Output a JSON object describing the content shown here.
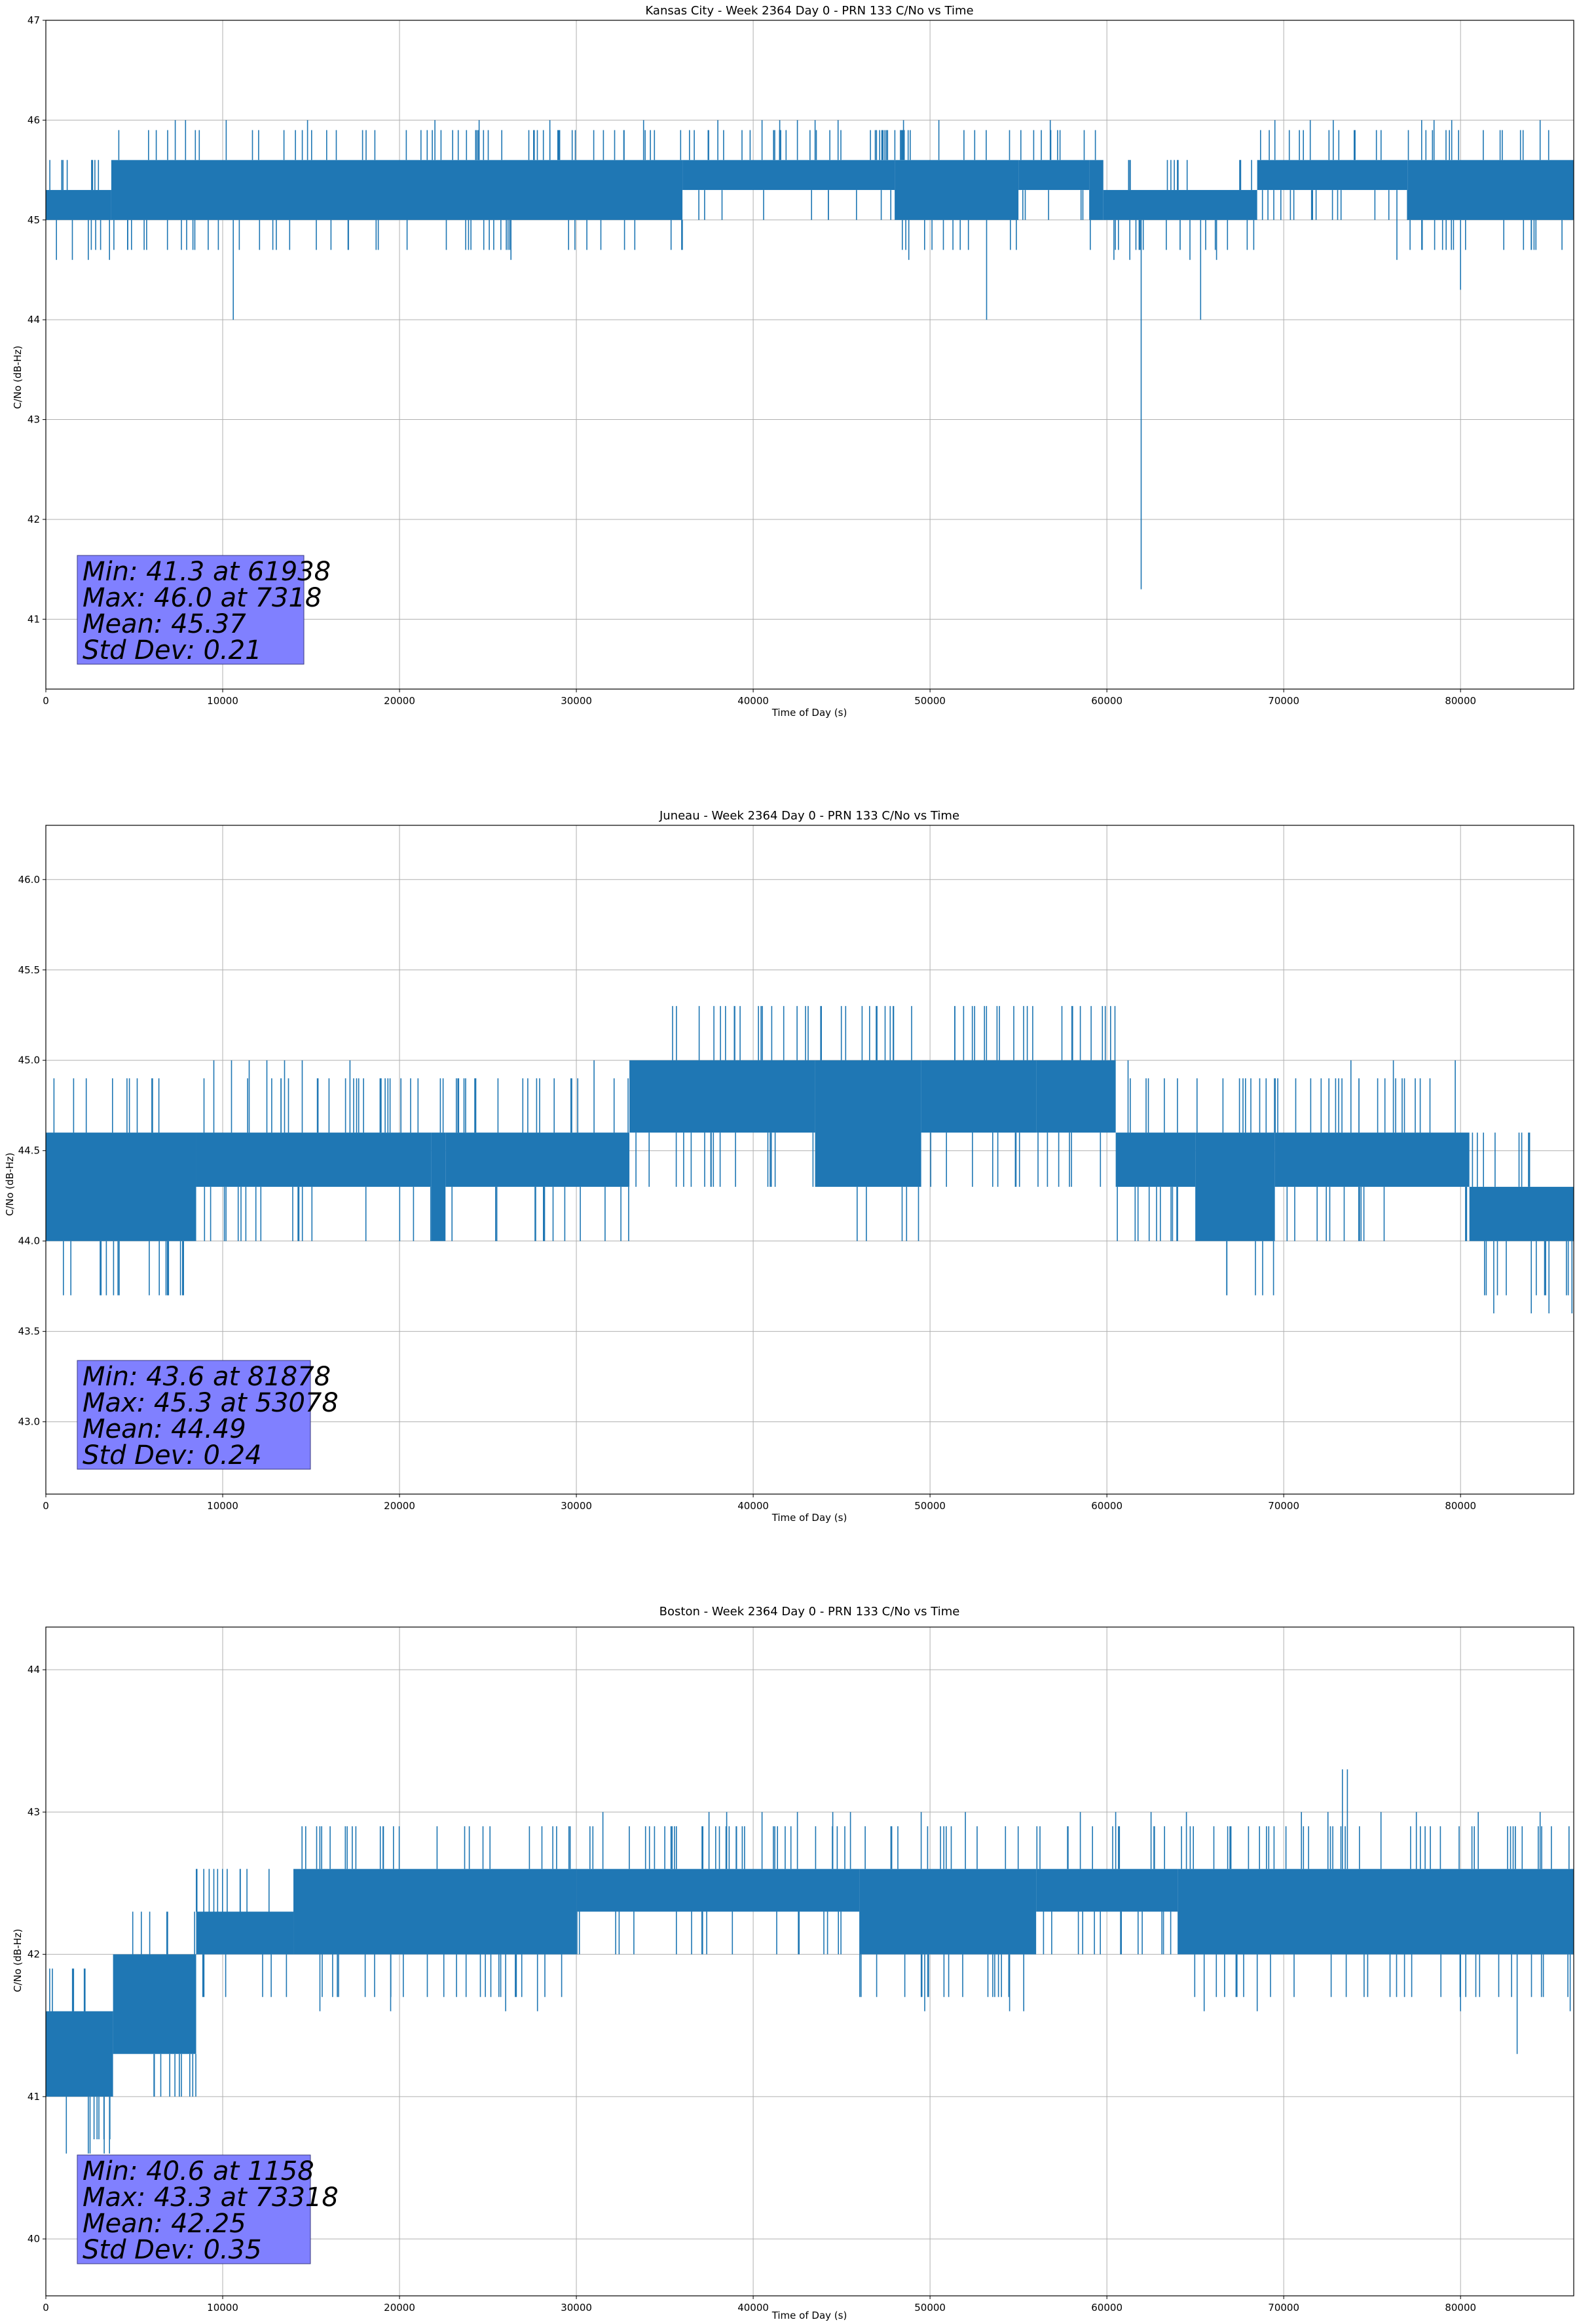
{
  "chart_data": [
    {
      "type": "line",
      "title": "Kansas City - Week 2364 Day 0 - PRN 133 C/No vs Time",
      "xlabel": "Time of Day (s)",
      "ylabel": "C/No (dB-Hz)",
      "xlim": [
        0,
        86400
      ],
      "ylim": [
        40.3,
        47.0
      ],
      "xticks": [
        0,
        10000,
        20000,
        30000,
        40000,
        50000,
        60000,
        70000,
        80000
      ],
      "yticks": [
        41,
        42,
        43,
        44,
        45,
        46,
        47
      ],
      "ytick_labels": [
        "41",
        "42",
        "43",
        "44",
        "45",
        "46",
        "47"
      ],
      "grid": true,
      "color": "#1f77b4",
      "series": [
        {
          "name": "C/No",
          "segments": [
            {
              "x": [
                0,
                3700
              ],
              "low": 45.0,
              "high": 45.3
            },
            {
              "x": [
                3700,
                36000
              ],
              "low": 45.0,
              "high": 45.6
            },
            {
              "x": [
                36000,
                48000
              ],
              "low": 45.3,
              "high": 45.6
            },
            {
              "x": [
                48000,
                55000
              ],
              "low": 45.0,
              "high": 45.6
            },
            {
              "x": [
                55000,
                59000
              ],
              "low": 45.3,
              "high": 45.6
            },
            {
              "x": [
                59000,
                59800
              ],
              "low": 45.0,
              "high": 45.6
            },
            {
              "x": [
                59800,
                68500
              ],
              "low": 45.0,
              "high": 45.3
            },
            {
              "x": [
                68500,
                77000
              ],
              "low": 45.3,
              "high": 45.6
            },
            {
              "x": [
                77000,
                86400
              ],
              "low": 45.0,
              "high": 45.6
            }
          ],
          "spikes": [
            {
              "x": 600,
              "y": 44.6
            },
            {
              "x": 1500,
              "y": 44.6
            },
            {
              "x": 2400,
              "y": 44.6
            },
            {
              "x": 3600,
              "y": 44.6
            },
            {
              "x": 7318,
              "y": 46.0
            },
            {
              "x": 7900,
              "y": 46.0
            },
            {
              "x": 10200,
              "y": 46.0
            },
            {
              "x": 10600,
              "y": 44.0
            },
            {
              "x": 14800,
              "y": 46.0
            },
            {
              "x": 22000,
              "y": 46.0
            },
            {
              "x": 24500,
              "y": 46.0
            },
            {
              "x": 26300,
              "y": 44.6
            },
            {
              "x": 28500,
              "y": 46.0
            },
            {
              "x": 33800,
              "y": 46.0
            },
            {
              "x": 38000,
              "y": 46.0
            },
            {
              "x": 40500,
              "y": 46.0
            },
            {
              "x": 41500,
              "y": 46.0
            },
            {
              "x": 42500,
              "y": 46.0
            },
            {
              "x": 43500,
              "y": 46.0
            },
            {
              "x": 44800,
              "y": 46.0
            },
            {
              "x": 48500,
              "y": 46.0
            },
            {
              "x": 48800,
              "y": 44.6
            },
            {
              "x": 50500,
              "y": 46.0
            },
            {
              "x": 53200,
              "y": 44.0
            },
            {
              "x": 56800,
              "y": 46.0
            },
            {
              "x": 60400,
              "y": 44.6
            },
            {
              "x": 61300,
              "y": 44.6
            },
            {
              "x": 61938,
              "y": 41.3
            },
            {
              "x": 64700,
              "y": 44.6
            },
            {
              "x": 65300,
              "y": 44.0
            },
            {
              "x": 66200,
              "y": 44.6
            },
            {
              "x": 69500,
              "y": 46.0
            },
            {
              "x": 71500,
              "y": 46.0
            },
            {
              "x": 72800,
              "y": 46.0
            },
            {
              "x": 76400,
              "y": 44.6
            },
            {
              "x": 77800,
              "y": 46.0
            },
            {
              "x": 78500,
              "y": 46.0
            },
            {
              "x": 79500,
              "y": 46.0
            },
            {
              "x": 80000,
              "y": 44.3
            },
            {
              "x": 84500,
              "y": 46.0
            }
          ]
        }
      ],
      "stats": [
        "Min: 41.3 at 61938",
        "Max: 46.0 at 7318",
        "Mean: 45.37",
        "Std Dev: 0.21"
      ]
    },
    {
      "type": "line",
      "title": "Juneau - Week 2364 Day 0 - PRN 133 C/No vs Time",
      "xlabel": "Time of Day (s)",
      "ylabel": "C/No (dB-Hz)",
      "xlim": [
        0,
        86400
      ],
      "ylim": [
        42.6,
        46.3
      ],
      "xticks": [
        0,
        10000,
        20000,
        30000,
        40000,
        50000,
        60000,
        70000,
        80000
      ],
      "yticks": [
        43.0,
        43.5,
        44.0,
        44.5,
        45.0,
        45.5,
        46.0
      ],
      "ytick_labels": [
        "43.0",
        "43.5",
        "44.0",
        "44.5",
        "45.0",
        "45.5",
        "46.0"
      ],
      "grid": true,
      "color": "#1f77b4",
      "series": [
        {
          "name": "C/No",
          "segments": [
            {
              "x": [
                0,
                8500
              ],
              "low": 44.0,
              "high": 44.6
            },
            {
              "x": [
                8500,
                21800
              ],
              "low": 44.3,
              "high": 44.6
            },
            {
              "x": [
                21800,
                22600
              ],
              "low": 44.0,
              "high": 44.6
            },
            {
              "x": [
                22600,
                33000
              ],
              "low": 44.3,
              "high": 44.6
            },
            {
              "x": [
                33000,
                43500
              ],
              "low": 44.6,
              "high": 45.0
            },
            {
              "x": [
                43500,
                49500
              ],
              "low": 44.3,
              "high": 45.0
            },
            {
              "x": [
                49500,
                56000
              ],
              "low": 44.6,
              "high": 45.0
            },
            {
              "x": [
                56000,
                60500
              ],
              "low": 44.6,
              "high": 45.0
            },
            {
              "x": [
                60500,
                65000
              ],
              "low": 44.3,
              "high": 44.6
            },
            {
              "x": [
                65000,
                69500
              ],
              "low": 44.0,
              "high": 44.6
            },
            {
              "x": [
                69500,
                80500
              ],
              "low": 44.3,
              "high": 44.6
            },
            {
              "x": [
                80500,
                86400
              ],
              "low": 44.0,
              "high": 44.3
            }
          ],
          "spikes": [
            {
              "x": 9500,
              "y": 45.0
            },
            {
              "x": 10500,
              "y": 45.0
            },
            {
              "x": 11500,
              "y": 45.0
            },
            {
              "x": 12500,
              "y": 45.0
            },
            {
              "x": 13500,
              "y": 45.0
            },
            {
              "x": 14500,
              "y": 45.0
            },
            {
              "x": 17200,
              "y": 45.0
            },
            {
              "x": 25500,
              "y": 44.0
            },
            {
              "x": 28200,
              "y": 44.0
            },
            {
              "x": 31000,
              "y": 45.0
            },
            {
              "x": 39000,
              "y": 44.3
            },
            {
              "x": 45500,
              "y": 44.3
            },
            {
              "x": 53078,
              "y": 45.3
            },
            {
              "x": 58000,
              "y": 44.3
            },
            {
              "x": 61200,
              "y": 45.0
            },
            {
              "x": 64000,
              "y": 44.0
            },
            {
              "x": 73800,
              "y": 45.0
            },
            {
              "x": 76200,
              "y": 45.0
            },
            {
              "x": 79700,
              "y": 45.0
            },
            {
              "x": 81878,
              "y": 43.6
            },
            {
              "x": 84000,
              "y": 43.6
            },
            {
              "x": 85000,
              "y": 43.6
            },
            {
              "x": 86300,
              "y": 43.6
            }
          ]
        }
      ],
      "stats": [
        "Min: 43.6 at 81878",
        "Max: 45.3 at 53078",
        "Mean: 44.49",
        "Std Dev: 0.24"
      ]
    },
    {
      "type": "line",
      "title": "Boston - Week 2364 Day 0 - PRN 133 C/No vs Time",
      "xlabel": "Time of Day (s)",
      "ylabel": "C/No (dB-Hz)",
      "xlim": [
        0,
        86400
      ],
      "ylim": [
        39.6,
        44.3
      ],
      "xticks": [
        0,
        10000,
        20000,
        30000,
        40000,
        50000,
        60000,
        70000,
        80000
      ],
      "yticks": [
        40,
        41,
        42,
        43,
        44
      ],
      "ytick_labels": [
        "40",
        "41",
        "42",
        "43",
        "44"
      ],
      "grid": true,
      "color": "#1f77b4",
      "series": [
        {
          "name": "C/No",
          "segments": [
            {
              "x": [
                0,
                3800
              ],
              "low": 41.0,
              "high": 41.6
            },
            {
              "x": [
                3800,
                8500
              ],
              "low": 41.3,
              "high": 42.0
            },
            {
              "x": [
                8500,
                14000
              ],
              "low": 42.0,
              "high": 42.3
            },
            {
              "x": [
                14000,
                30000
              ],
              "low": 42.0,
              "high": 42.6
            },
            {
              "x": [
                30000,
                46000
              ],
              "low": 42.3,
              "high": 42.6
            },
            {
              "x": [
                46000,
                56000
              ],
              "low": 42.0,
              "high": 42.6
            },
            {
              "x": [
                56000,
                64000
              ],
              "low": 42.3,
              "high": 42.6
            },
            {
              "x": [
                64000,
                86400
              ],
              "low": 42.0,
              "high": 42.6
            }
          ],
          "spikes": [
            {
              "x": 1158,
              "y": 40.6
            },
            {
              "x": 2400,
              "y": 40.6
            },
            {
              "x": 2500,
              "y": 40.6
            },
            {
              "x": 3300,
              "y": 40.6
            },
            {
              "x": 3600,
              "y": 40.6
            },
            {
              "x": 5400,
              "y": 42.3
            },
            {
              "x": 6500,
              "y": 41.0
            },
            {
              "x": 7300,
              "y": 41.0
            },
            {
              "x": 9500,
              "y": 42.6
            },
            {
              "x": 11000,
              "y": 42.6
            },
            {
              "x": 15500,
              "y": 41.6
            },
            {
              "x": 19500,
              "y": 41.6
            },
            {
              "x": 26000,
              "y": 41.6
            },
            {
              "x": 27800,
              "y": 41.6
            },
            {
              "x": 31500,
              "y": 43.0
            },
            {
              "x": 37500,
              "y": 43.0
            },
            {
              "x": 38500,
              "y": 43.0
            },
            {
              "x": 40500,
              "y": 43.0
            },
            {
              "x": 42500,
              "y": 43.0
            },
            {
              "x": 44500,
              "y": 43.0
            },
            {
              "x": 45500,
              "y": 43.0
            },
            {
              "x": 49500,
              "y": 43.0
            },
            {
              "x": 49700,
              "y": 41.6
            },
            {
              "x": 52000,
              "y": 43.0
            },
            {
              "x": 54500,
              "y": 41.6
            },
            {
              "x": 55300,
              "y": 41.6
            },
            {
              "x": 58500,
              "y": 43.0
            },
            {
              "x": 60500,
              "y": 43.0
            },
            {
              "x": 62500,
              "y": 43.0
            },
            {
              "x": 64500,
              "y": 43.0
            },
            {
              "x": 65500,
              "y": 41.6
            },
            {
              "x": 68500,
              "y": 41.6
            },
            {
              "x": 71000,
              "y": 43.0
            },
            {
              "x": 72500,
              "y": 43.0
            },
            {
              "x": 73318,
              "y": 43.3
            },
            {
              "x": 73600,
              "y": 43.3
            },
            {
              "x": 75500,
              "y": 43.0
            },
            {
              "x": 77500,
              "y": 43.0
            },
            {
              "x": 80000,
              "y": 41.6
            },
            {
              "x": 81000,
              "y": 43.0
            },
            {
              "x": 83200,
              "y": 41.3
            },
            {
              "x": 84500,
              "y": 43.0
            },
            {
              "x": 86200,
              "y": 41.6
            }
          ]
        }
      ],
      "stats": [
        "Min: 40.6 at 1158",
        "Max: 43.3 at 73318",
        "Mean: 42.25",
        "Std Dev: 0.35"
      ]
    }
  ]
}
